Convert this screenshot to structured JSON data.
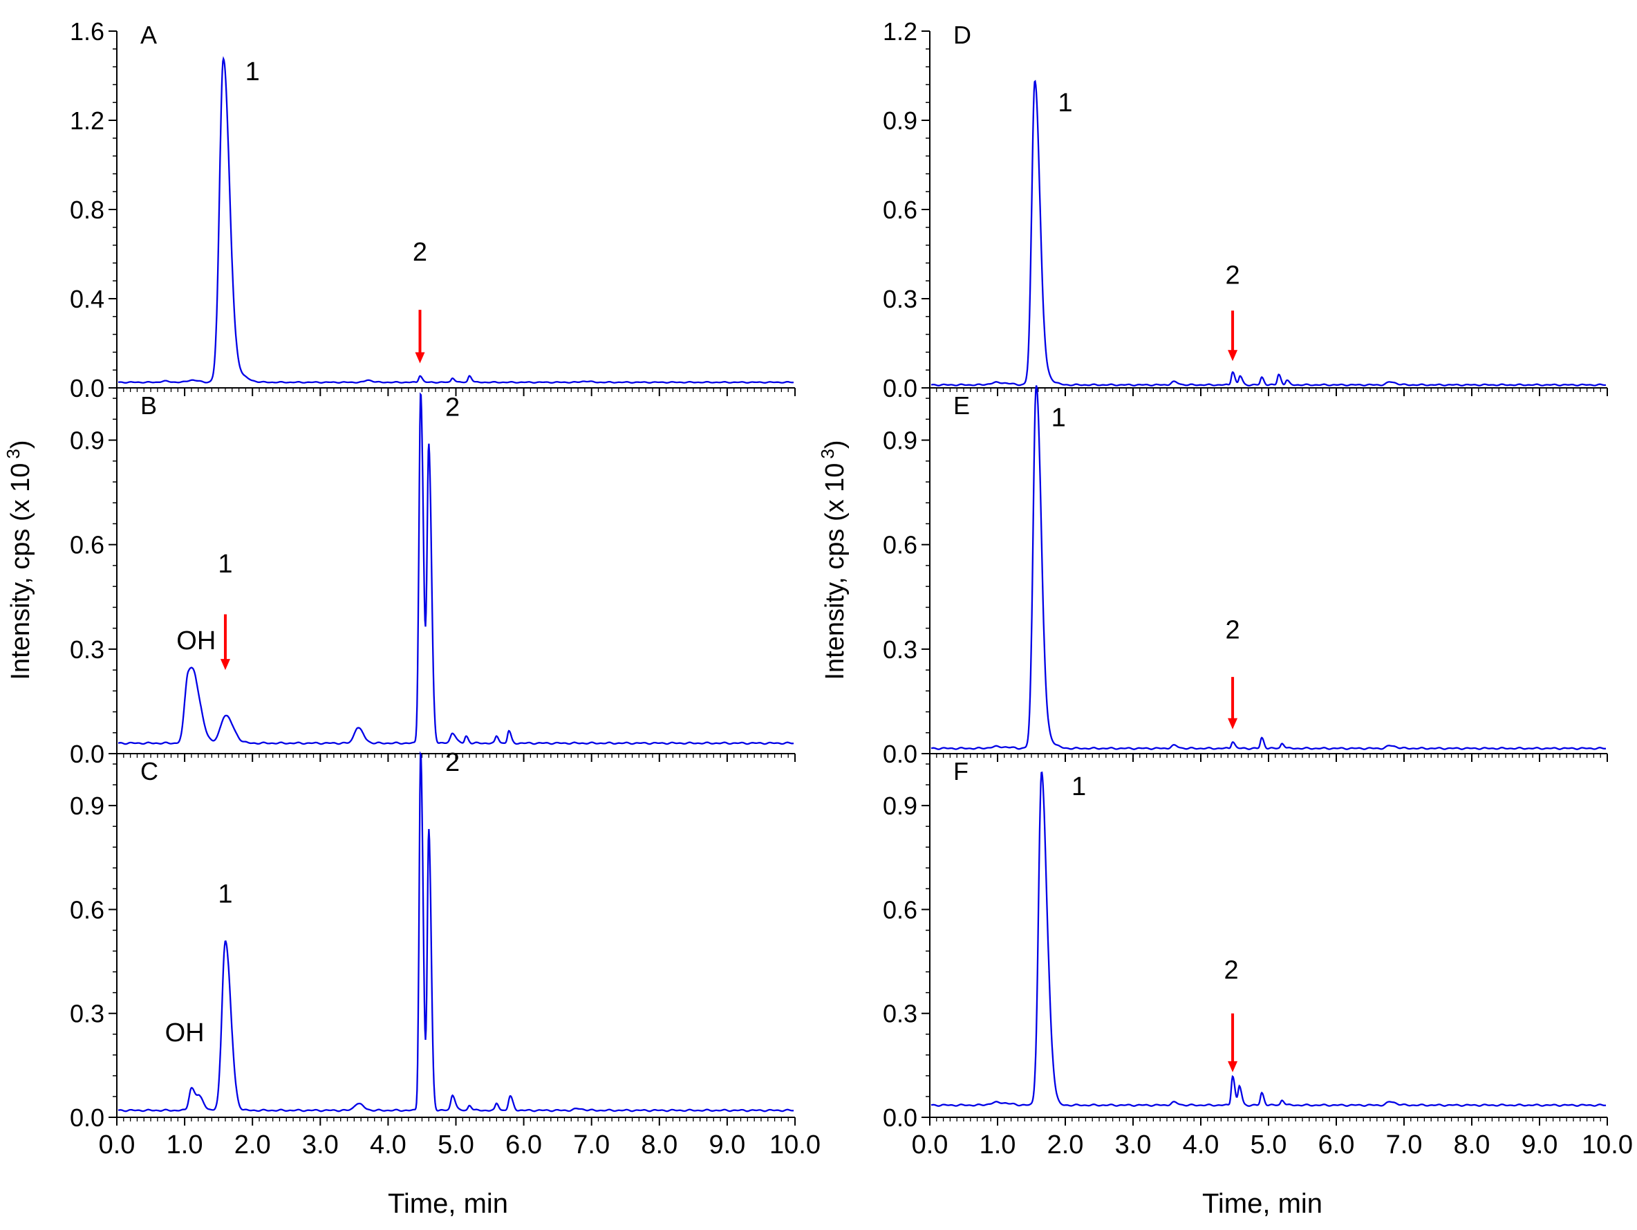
{
  "figure": {
    "y_axis_title": "Intensity, cps (x 10 3)",
    "y_axis_title_base": "Intensity, cps (x 10",
    "y_axis_title_exp": "3",
    "y_axis_title_close": ")",
    "x_axis_title": "Time, min"
  },
  "chart_data": [
    {
      "type": "line",
      "panel": "A",
      "column": "left",
      "xlabel": "Time, min",
      "ylabel": "Intensity, cps (x 10 3)",
      "xlim": [
        0,
        10
      ],
      "ylim": [
        0,
        1.6
      ],
      "yticks": [
        "0.0",
        "0.4",
        "0.8",
        "1.2",
        "1.6"
      ],
      "ytick_values": [
        0,
        0.4,
        0.8,
        1.2,
        1.6
      ],
      "baseline": 0.025,
      "line_color": "#0000e6",
      "peaks": [
        {
          "x": 0.7,
          "h": 0.005,
          "w": 0.05
        },
        {
          "x": 1.1,
          "h": 0.01,
          "w": 0.06
        },
        {
          "x": 1.57,
          "h": 1.42,
          "w": 0.055
        },
        {
          "x": 1.68,
          "h": 0.06,
          "w": 0.1
        },
        {
          "x": 3.7,
          "h": 0.01,
          "w": 0.04
        },
        {
          "x": 4.47,
          "h": 0.03,
          "w": 0.02
        },
        {
          "x": 4.95,
          "h": 0.02,
          "w": 0.02
        },
        {
          "x": 5.2,
          "h": 0.03,
          "w": 0.02
        },
        {
          "x": 6.9,
          "h": 0.005,
          "w": 0.05
        }
      ],
      "labels": [
        {
          "text": "1",
          "x": 2.0,
          "y": 1.38
        },
        {
          "text": "2",
          "x": 4.47,
          "y": 0.57
        }
      ],
      "arrows": [
        {
          "x": 4.47,
          "y_top": 0.35,
          "y_bottom": 0.11
        }
      ]
    },
    {
      "type": "line",
      "panel": "B",
      "column": "left",
      "xlabel": "Time, min",
      "ylabel": "Intensity, cps (x 10 3)",
      "xlim": [
        0,
        10
      ],
      "ylim": [
        0,
        1.05
      ],
      "yticks": [
        "0.0",
        "0.3",
        "0.6",
        "0.9"
      ],
      "ytick_values": [
        0,
        0.3,
        0.6,
        0.9
      ],
      "baseline": 0.03,
      "line_color": "#0000e6",
      "peaks": [
        {
          "x": 1.05,
          "h": 0.19,
          "w": 0.05
        },
        {
          "x": 1.17,
          "h": 0.12,
          "w": 0.06
        },
        {
          "x": 1.6,
          "h": 0.08,
          "w": 0.07
        },
        {
          "x": 3.55,
          "h": 0.045,
          "w": 0.05
        },
        {
          "x": 4.48,
          "h": 1.01,
          "w": 0.025
        },
        {
          "x": 4.6,
          "h": 0.85,
          "w": 0.025
        },
        {
          "x": 4.95,
          "h": 0.03,
          "w": 0.03
        },
        {
          "x": 5.15,
          "h": 0.02,
          "w": 0.02
        },
        {
          "x": 5.6,
          "h": 0.02,
          "w": 0.02
        },
        {
          "x": 5.78,
          "h": 0.035,
          "w": 0.02
        }
      ],
      "labels": [
        {
          "text": "2",
          "x": 4.95,
          "y": 0.97
        },
        {
          "text": "1",
          "x": 1.6,
          "y": 0.52
        },
        {
          "text": "OH",
          "x": 1.17,
          "y": 0.3
        }
      ],
      "arrows": [
        {
          "x": 1.6,
          "y_top": 0.4,
          "y_bottom": 0.24
        }
      ]
    },
    {
      "type": "line",
      "panel": "C",
      "column": "left",
      "xlabel": "Time, min",
      "ylabel": "Intensity, cps (x 10 3)",
      "xlim": [
        0,
        10
      ],
      "ylim": [
        0,
        1.05
      ],
      "yticks": [
        "0.0",
        "0.3",
        "0.6",
        "0.9"
      ],
      "ytick_values": [
        0,
        0.3,
        0.6,
        0.9
      ],
      "baseline": 0.02,
      "line_color": "#0000e6",
      "peaks": [
        {
          "x": 1.1,
          "h": 0.065,
          "w": 0.035
        },
        {
          "x": 1.22,
          "h": 0.035,
          "w": 0.04
        },
        {
          "x": 1.6,
          "h": 0.49,
          "w": 0.05
        },
        {
          "x": 3.55,
          "h": 0.02,
          "w": 0.05
        },
        {
          "x": 4.48,
          "h": 1.04,
          "w": 0.022
        },
        {
          "x": 4.6,
          "h": 0.81,
          "w": 0.022
        },
        {
          "x": 4.95,
          "h": 0.045,
          "w": 0.025
        },
        {
          "x": 5.2,
          "h": 0.015,
          "w": 0.02
        },
        {
          "x": 5.6,
          "h": 0.02,
          "w": 0.02
        },
        {
          "x": 5.8,
          "h": 0.04,
          "w": 0.025
        },
        {
          "x": 6.8,
          "h": 0.005,
          "w": 0.05
        }
      ],
      "labels": [
        {
          "text": "2",
          "x": 4.95,
          "y": 1.0
        },
        {
          "text": "1",
          "x": 1.6,
          "y": 0.62
        },
        {
          "text": "OH",
          "x": 1.0,
          "y": 0.22
        }
      ],
      "arrows": []
    },
    {
      "type": "line",
      "panel": "D",
      "column": "right",
      "xlabel": "Time, min",
      "ylabel": "Intensity, cps (x 10 3)",
      "xlim": [
        0,
        10
      ],
      "ylim": [
        0,
        1.2
      ],
      "yticks": [
        "0.0",
        "0.3",
        "0.6",
        "0.9",
        "1.2"
      ],
      "ytick_values": [
        0,
        0.3,
        0.6,
        0.9,
        1.2
      ],
      "baseline": 0.01,
      "line_color": "#0000e6",
      "peaks": [
        {
          "x": 1.0,
          "h": 0.008,
          "w": 0.1
        },
        {
          "x": 1.55,
          "h": 0.99,
          "w": 0.045
        },
        {
          "x": 1.62,
          "h": 0.05,
          "w": 0.08
        },
        {
          "x": 3.6,
          "h": 0.01,
          "w": 0.04
        },
        {
          "x": 4.47,
          "h": 0.045,
          "w": 0.02
        },
        {
          "x": 4.58,
          "h": 0.03,
          "w": 0.02
        },
        {
          "x": 4.9,
          "h": 0.025,
          "w": 0.02
        },
        {
          "x": 5.15,
          "h": 0.035,
          "w": 0.02
        },
        {
          "x": 5.27,
          "h": 0.015,
          "w": 0.02
        },
        {
          "x": 6.8,
          "h": 0.01,
          "w": 0.05
        }
      ],
      "labels": [
        {
          "text": "1",
          "x": 2.0,
          "y": 0.93
        },
        {
          "text": "2",
          "x": 4.47,
          "y": 0.35
        }
      ],
      "arrows": [
        {
          "x": 4.47,
          "y_top": 0.26,
          "y_bottom": 0.09
        }
      ]
    },
    {
      "type": "line",
      "panel": "E",
      "column": "right",
      "xlabel": "Time, min",
      "ylabel": "Intensity, cps (x 10 3)",
      "xlim": [
        0,
        10
      ],
      "ylim": [
        0,
        1.05
      ],
      "yticks": [
        "0.0",
        "0.3",
        "0.6",
        "0.9"
      ],
      "ytick_values": [
        0,
        0.3,
        0.6,
        0.9
      ],
      "baseline": 0.015,
      "line_color": "#0000e6",
      "peaks": [
        {
          "x": 1.0,
          "h": 0.005,
          "w": 0.1
        },
        {
          "x": 1.57,
          "h": 1.01,
          "w": 0.045
        },
        {
          "x": 1.64,
          "h": 0.05,
          "w": 0.08
        },
        {
          "x": 3.6,
          "h": 0.008,
          "w": 0.04
        },
        {
          "x": 4.47,
          "h": 0.02,
          "w": 0.02
        },
        {
          "x": 4.9,
          "h": 0.03,
          "w": 0.02
        },
        {
          "x": 5.2,
          "h": 0.015,
          "w": 0.02
        },
        {
          "x": 6.8,
          "h": 0.008,
          "w": 0.05
        }
      ],
      "labels": [
        {
          "text": "1",
          "x": 1.9,
          "y": 0.94
        },
        {
          "text": "2",
          "x": 4.47,
          "y": 0.33
        }
      ],
      "arrows": [
        {
          "x": 4.47,
          "y_top": 0.22,
          "y_bottom": 0.07
        }
      ]
    },
    {
      "type": "line",
      "panel": "F",
      "column": "right",
      "xlabel": "Time, min",
      "ylabel": "Intensity, cps (x 10 3)",
      "xlim": [
        0,
        10
      ],
      "ylim": [
        0,
        1.05
      ],
      "yticks": [
        "0.0",
        "0.3",
        "0.6",
        "0.9"
      ],
      "ytick_values": [
        0,
        0.3,
        0.6,
        0.9
      ],
      "baseline": 0.035,
      "line_color": "#0000e6",
      "peaks": [
        {
          "x": 1.0,
          "h": 0.008,
          "w": 0.1
        },
        {
          "x": 1.65,
          "h": 0.96,
          "w": 0.045
        },
        {
          "x": 1.77,
          "h": 0.09,
          "w": 0.04
        },
        {
          "x": 3.6,
          "h": 0.008,
          "w": 0.04
        },
        {
          "x": 4.47,
          "h": 0.085,
          "w": 0.02
        },
        {
          "x": 4.57,
          "h": 0.055,
          "w": 0.02
        },
        {
          "x": 4.9,
          "h": 0.035,
          "w": 0.02
        },
        {
          "x": 5.2,
          "h": 0.015,
          "w": 0.02
        },
        {
          "x": 6.8,
          "h": 0.01,
          "w": 0.05
        }
      ],
      "labels": [
        {
          "text": "1",
          "x": 2.2,
          "y": 0.93
        },
        {
          "text": "2",
          "x": 4.45,
          "y": 0.4
        }
      ],
      "arrows": [
        {
          "x": 4.47,
          "y_top": 0.3,
          "y_bottom": 0.13
        }
      ]
    }
  ],
  "x_axis": {
    "ticks": [
      "0.0",
      "1.0",
      "2.0",
      "3.0",
      "4.0",
      "5.0",
      "6.0",
      "7.0",
      "8.0",
      "9.0",
      "10.0"
    ],
    "tick_values": [
      0,
      1,
      2,
      3,
      4,
      5,
      6,
      7,
      8,
      9,
      10
    ]
  },
  "colors": {
    "trace": "#0000e6",
    "arrow": "#ff0000",
    "axis": "#000000"
  }
}
